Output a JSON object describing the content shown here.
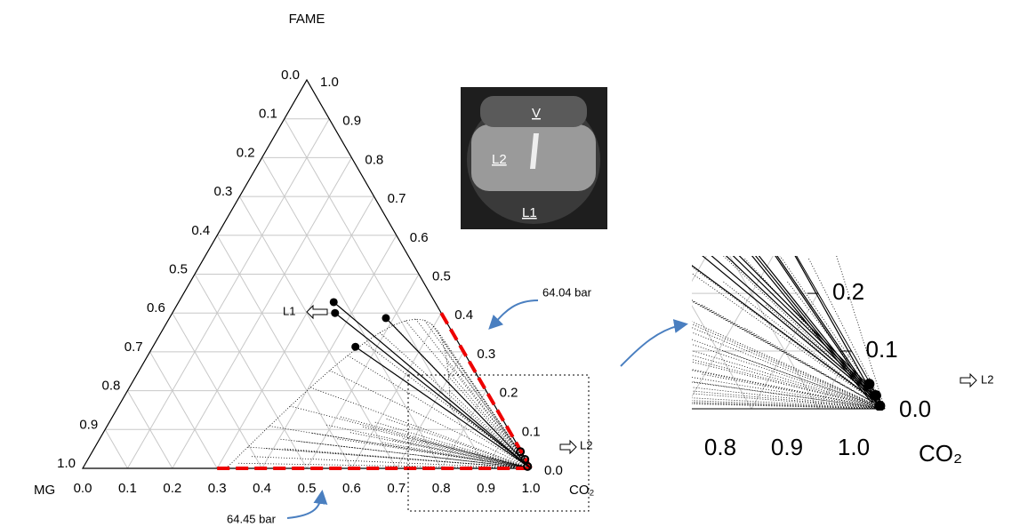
{
  "figure": {
    "top_label": "FAME",
    "bottom_axis": {
      "label": "CO₂",
      "ticks": [
        "0.0",
        "0.1",
        "0.2",
        "0.3",
        "0.4",
        "0.5",
        "0.6",
        "0.7",
        "0.8",
        "0.9",
        "1.0"
      ]
    },
    "left_axis": {
      "label": "MG",
      "ticks": [
        "0.0",
        "0.1",
        "0.2",
        "0.3",
        "0.4",
        "0.5",
        "0.6",
        "0.7",
        "0.8",
        "0.9",
        "1.0"
      ]
    },
    "right_axis": {
      "ticks": [
        "0.0",
        "0.1",
        "0.2",
        "0.3",
        "0.4",
        "0.5",
        "0.6",
        "0.7",
        "0.8",
        "0.9",
        "1.0"
      ]
    },
    "photo_labels": [
      "V",
      "L2",
      "L1"
    ],
    "phase_labels": {
      "l1": "L1",
      "l2": "L2"
    },
    "pressure_labels": [
      "64.04 bar",
      "64.45 bar"
    ],
    "l1_points": [
      [
        0.346,
        0.428
      ],
      [
        0.363,
        0.4
      ],
      [
        0.483,
        0.387
      ],
      [
        0.452,
        0.313
      ]
    ],
    "l2_points": [
      [
        0.955,
        0.043
      ],
      [
        0.975,
        0.023
      ],
      [
        0.99,
        0.005
      ]
    ],
    "zoom": {
      "y_ticks": [
        "0.2",
        "0.1",
        "0.0"
      ],
      "x_ticks": [
        "0.8",
        "0.9",
        "1.0"
      ],
      "x_label": "CO₂",
      "l2_label": "L2"
    }
  }
}
